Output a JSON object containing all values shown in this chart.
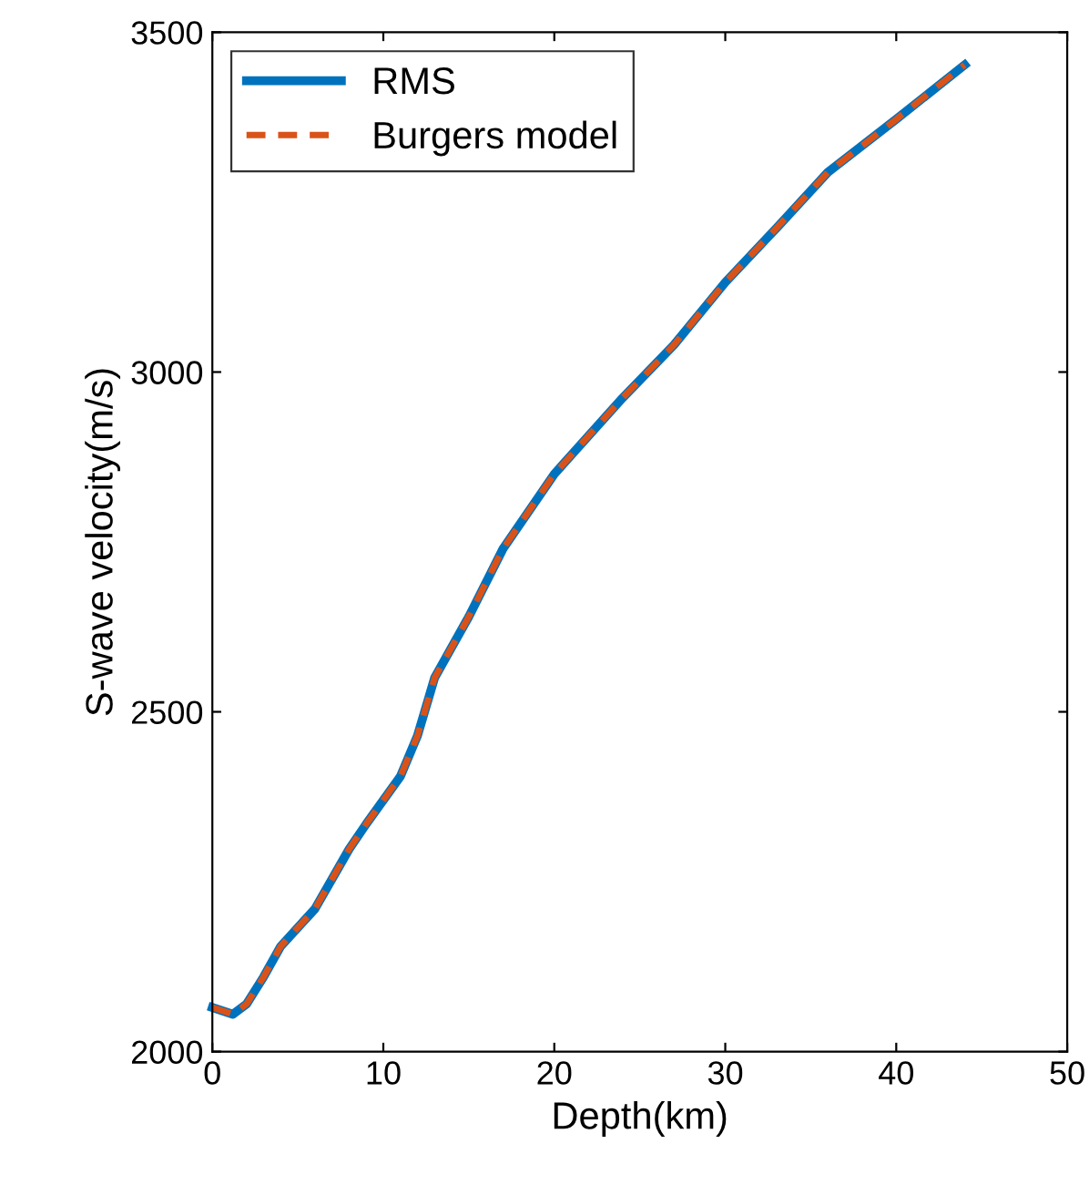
{
  "chart_data": {
    "type": "line",
    "xlabel": "Depth(km)",
    "ylabel": "S-wave velocity(m/s)",
    "x": [
      0,
      1.2,
      2,
      3,
      4,
      6,
      8,
      9,
      11,
      12,
      13,
      15,
      17,
      20,
      24,
      27,
      30,
      33,
      36,
      40,
      44
    ],
    "series": [
      {
        "name": "RMS",
        "color": "#0072bd",
        "line_style": "solid",
        "values": [
          2065,
          2055,
          2070,
          2110,
          2155,
          2210,
          2298,
          2335,
          2405,
          2465,
          2550,
          2640,
          2740,
          2850,
          2962,
          3040,
          3132,
          3212,
          3294,
          3372,
          3452
        ]
      },
      {
        "name": "Burgers model",
        "color": "#d95319",
        "line_style": "dashed",
        "values": [
          2065,
          2055,
          2070,
          2110,
          2155,
          2210,
          2298,
          2335,
          2405,
          2465,
          2550,
          2640,
          2740,
          2850,
          2962,
          3040,
          3132,
          3212,
          3294,
          3372,
          3452
        ]
      }
    ],
    "xlim": [
      0,
      50
    ],
    "xticks": [
      0,
      10,
      20,
      30,
      40,
      50
    ],
    "ylim": [
      2000,
      3500
    ],
    "yticks": [
      2000,
      2500,
      3000,
      3500
    ],
    "grid": false,
    "legend": "top left"
  }
}
